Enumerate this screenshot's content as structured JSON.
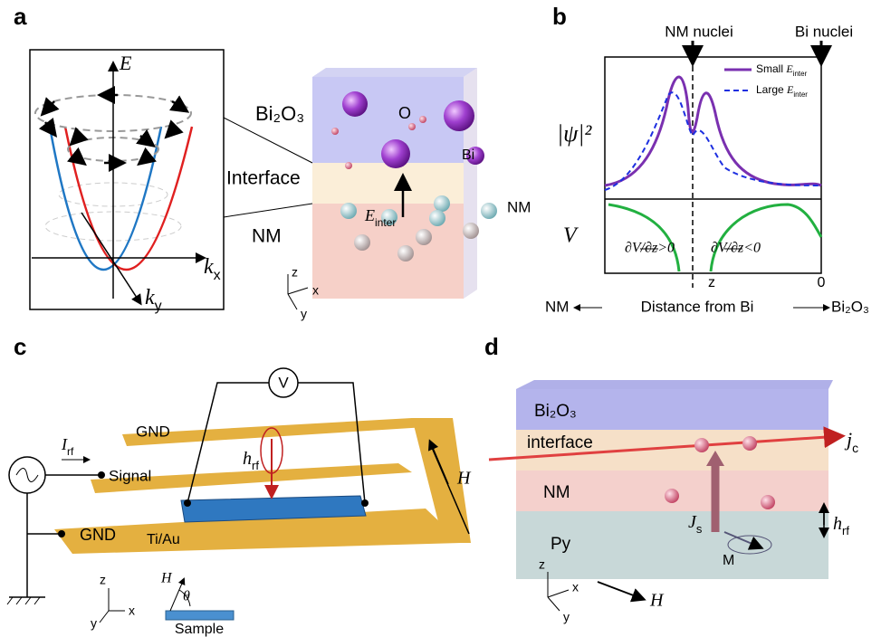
{
  "panel_a": {
    "label": "a",
    "e_axis": "E",
    "kx": {
      "text": "k",
      "sub": "x"
    },
    "ky": {
      "text": "k",
      "sub": "y"
    },
    "oxide": "Bi₂O₃",
    "o_atom": "O",
    "bi_atom": "Bi",
    "interface": "Interface",
    "field": {
      "text": "E",
      "sub": "inter"
    },
    "nm": "NM",
    "axes": [
      "z",
      "x",
      "y"
    ]
  },
  "panel_b": {
    "label": "b",
    "nm_nuclei": "NM nuclei",
    "bi_nuclei": "Bi nuclei",
    "legend": [
      {
        "text": "Small ",
        "field": "E",
        "sub": "inter"
      },
      {
        "text": "Large ",
        "field": "E",
        "sub": "inter"
      }
    ],
    "psi": "|ψ|²",
    "potential": "V",
    "left_slope": "∂V/∂z>0",
    "right_slope": "∂V/∂z<0",
    "z": "z",
    "zero": "0",
    "left_end": "NM",
    "x_label": "Distance from Bi",
    "right_end": "Bi₂O₃"
  },
  "panel_c": {
    "label": "c",
    "voltmeter": "V",
    "gnd_top": "GND",
    "current": {
      "text": "I",
      "sub": "rf"
    },
    "signal": "Signal",
    "field": {
      "text": "h",
      "sub": "rf"
    },
    "h": "H",
    "gnd_bottom": "GND",
    "material": "Ti/Au",
    "axes": [
      "z",
      "x",
      "y"
    ],
    "inset_h": "H",
    "theta": "θ",
    "sample": "Sample"
  },
  "panel_d": {
    "label": "d",
    "oxide": "Bi₂O₃",
    "interface": "interface",
    "charge": {
      "text": "j",
      "sub": "c"
    },
    "nm": "NM",
    "spin": {
      "text": "J",
      "sub": "s"
    },
    "field": {
      "text": "h",
      "sub": "rf"
    },
    "py": "Py",
    "m": "M",
    "axes": [
      "z",
      "x",
      "y"
    ],
    "h": "H"
  }
}
